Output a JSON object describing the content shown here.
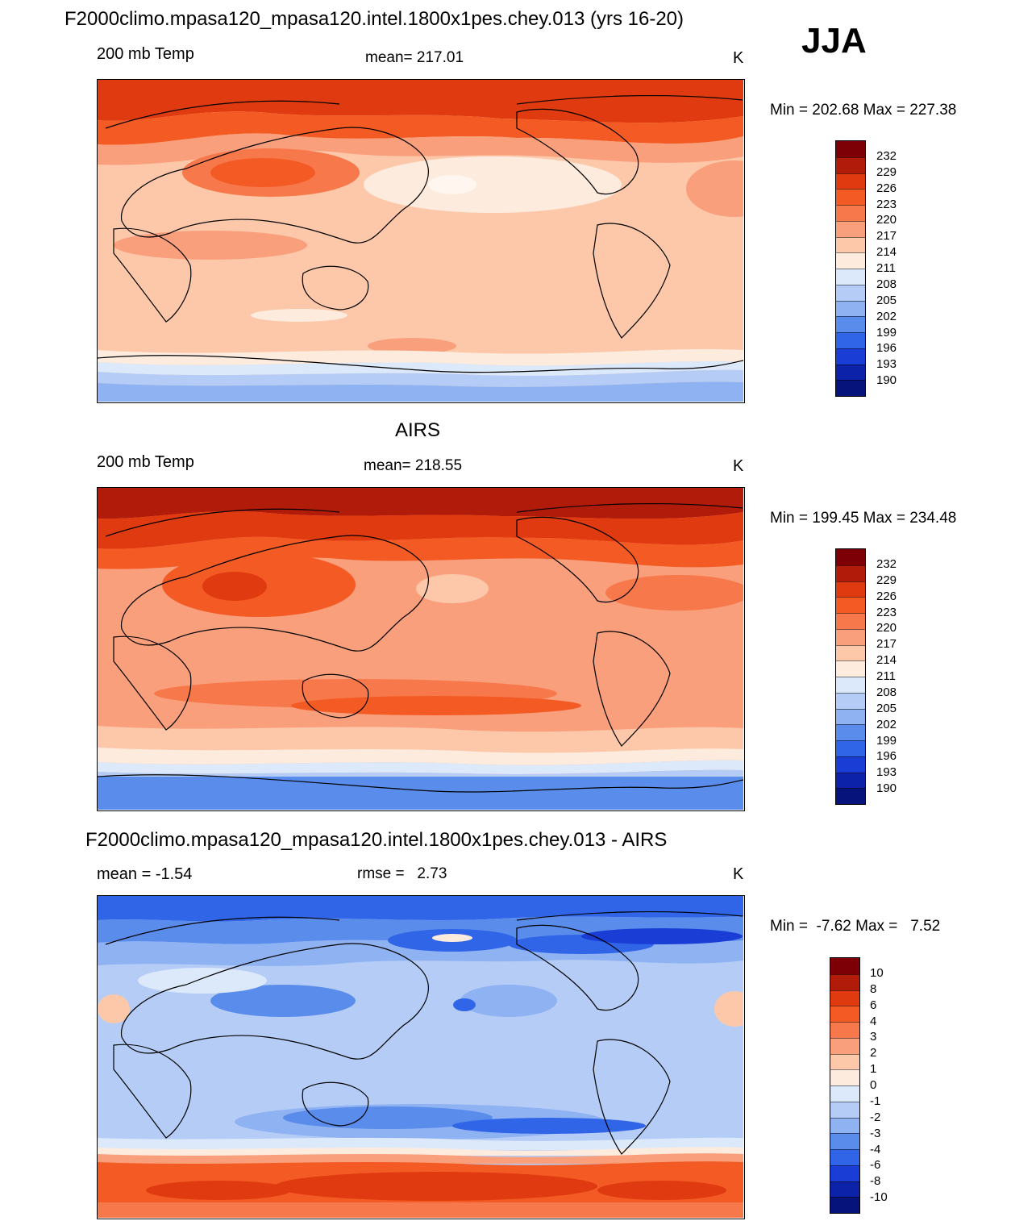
{
  "figure": {
    "top_title": "F2000climo.mpasa120_mpasa120.intel.1800x1pes.chey.013 (yrs 16-20)",
    "season": "JJA"
  },
  "panels": [
    {
      "id": "model",
      "title": "",
      "left_label": "200 mb Temp",
      "center_label": "mean= 217.01",
      "units": "K",
      "minmax": "Min = 202.68 Max = 227.38"
    },
    {
      "id": "obs",
      "title": "AIRS",
      "left_label": "200 mb Temp",
      "center_label": "mean= 218.55",
      "units": "K",
      "minmax": "Min = 199.45 Max = 234.48"
    },
    {
      "id": "diff",
      "title": "F2000climo.mpasa120_mpasa120.intel.1800x1pes.chey.013 - AIRS",
      "left_label": "mean =  -1.54",
      "center_label": "rmse =   2.73",
      "units": "K",
      "minmax": "Min =  -7.62 Max =   7.52"
    }
  ],
  "chart_data": [
    {
      "type": "heatmap",
      "title": "200 mb Temp (model, JJA)",
      "units": "K",
      "mean": 217.01,
      "min": 202.68,
      "max": 227.38,
      "contour_levels": [
        190,
        193,
        196,
        199,
        202,
        205,
        208,
        211,
        214,
        217,
        220,
        223,
        226,
        229,
        232
      ],
      "colorbar_colors": [
        "#7d0006",
        "#b11b0a",
        "#e03a10",
        "#f45b24",
        "#f7784a",
        "#f99f7c",
        "#fcc8a9",
        "#fdebdd",
        "#dce9fb",
        "#b5cdf6",
        "#8eb2f2",
        "#5a8cec",
        "#3065e8",
        "#1a3dd6",
        "#0c22a8",
        "#06137a"
      ]
    },
    {
      "type": "heatmap",
      "title": "200 mb Temp (AIRS, JJA)",
      "units": "K",
      "mean": 218.55,
      "min": 199.45,
      "max": 234.48,
      "contour_levels": [
        190,
        193,
        196,
        199,
        202,
        205,
        208,
        211,
        214,
        217,
        220,
        223,
        226,
        229,
        232
      ],
      "colorbar_colors": [
        "#7d0006",
        "#b11b0a",
        "#e03a10",
        "#f45b24",
        "#f7784a",
        "#f99f7c",
        "#fcc8a9",
        "#fdebdd",
        "#dce9fb",
        "#b5cdf6",
        "#8eb2f2",
        "#5a8cec",
        "#3065e8",
        "#1a3dd6",
        "#0c22a8",
        "#06137a"
      ]
    },
    {
      "type": "heatmap",
      "title": "Model - AIRS 200 mb Temp (JJA)",
      "units": "K",
      "mean": -1.54,
      "rmse": 2.73,
      "min": -7.62,
      "max": 7.52,
      "contour_levels": [
        -10,
        -8,
        -6,
        -4,
        -3,
        -2,
        -1,
        0,
        1,
        2,
        3,
        4,
        6,
        8,
        10
      ],
      "colorbar_colors": [
        "#7d0006",
        "#b11b0a",
        "#e03a10",
        "#f45b24",
        "#f7784a",
        "#f99f7c",
        "#fcc8a9",
        "#fdebdd",
        "#dce9fb",
        "#b5cdf6",
        "#8eb2f2",
        "#5a8cec",
        "#3065e8",
        "#1a3dd6",
        "#0c22a8",
        "#06137a"
      ]
    }
  ]
}
